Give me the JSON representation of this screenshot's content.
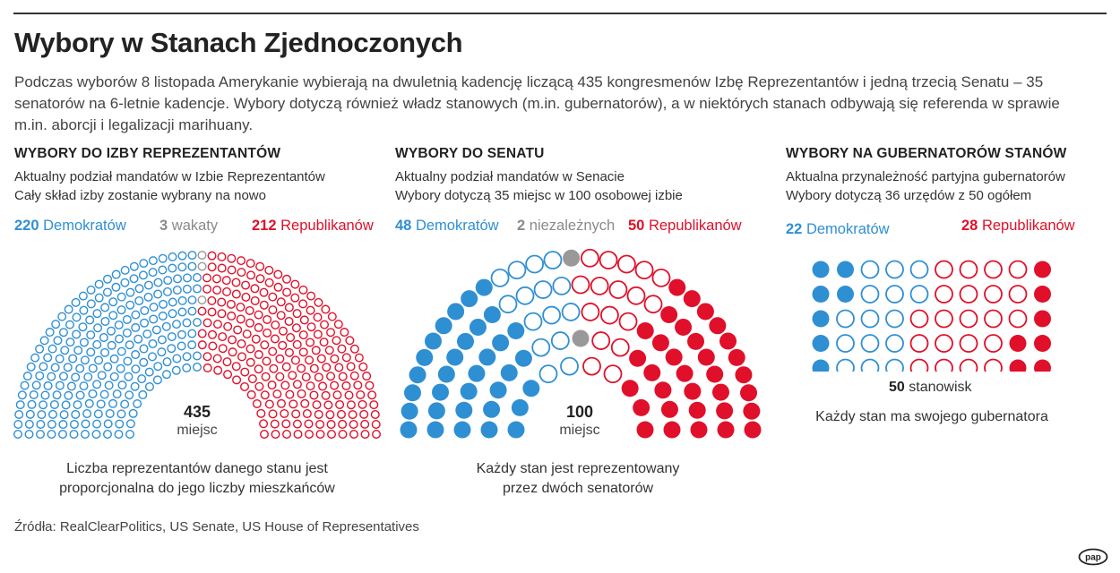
{
  "title": "Wybory w Stanach Zjednoczonych",
  "intro": "Podczas wyborów 8 listopada Amerykanie wybierają na dwuletnią kadencję liczącą 435 kongresmenów Izbę Reprezentantów i jedną trzecią Senatu – 35 senatorów na 6-letnie kadencje. Wybory dotyczą również władz stanowych (m.in. gubernatorów), a w niektórych stanach odbywają się referenda w sprawie m.in. aborcji i legalizacji marihuany.",
  "colors": {
    "democrats": "#2f8fd3",
    "republicans": "#e0102a",
    "other": "#999999"
  },
  "house": {
    "heading": "WYBORY DO IZBY REPREZENTANTÓW",
    "sub1": "Aktualny podział mandatów w Izbie Reprezentantów",
    "sub2": "Cały skład izby zostanie wybrany na nowo",
    "dem_count": "220",
    "dem_label": "Demokratów",
    "vac_count": "3",
    "vac_label": "wakaty",
    "rep_count": "212",
    "rep_label": "Republikanów",
    "total": "435",
    "total_label": "miejsc",
    "caption1": "Liczba reprezentantów danego stanu jest",
    "caption2": "proporcjonalna do jego liczby mieszkańców"
  },
  "senate": {
    "heading": "WYBORY DO SENATU",
    "sub1": "Aktualny podział mandatów w Senacie",
    "sub2": "Wybory dotyczą 35 miejsc w 100 osobowej izbie",
    "dem_count": "48",
    "dem_label": "Demokratów",
    "ind_count": "2",
    "ind_label": "niezależnych",
    "rep_count": "50",
    "rep_label": "Republikanów",
    "total": "100",
    "total_label": "miejsc",
    "caption1": "Każdy stan jest reprezentowany",
    "caption2": "przez dwóch senatorów"
  },
  "governors": {
    "heading": "WYBORY NA GUBERNATORÓW STANÓW",
    "sub1": "Aktualna przynależność partyjna gubernatorów",
    "sub2": "Wybory dotyczą 36 urzędów z 50 ogółem",
    "dem_count": "22",
    "dem_label": "Demokratów",
    "rep_count": "28",
    "rep_label": "Republikanów",
    "total": "50",
    "total_label": "stanowisk",
    "caption": "Każdy stan ma swojego gubernatora"
  },
  "chart_data": [
    {
      "type": "parliament",
      "categories": [
        "Demokratów",
        "wakaty",
        "Republikanów"
      ],
      "values": [
        220,
        3,
        212
      ],
      "total": 435
    },
    {
      "type": "parliament",
      "categories": [
        "Demokratów",
        "niezależnych",
        "Republikanów"
      ],
      "values": [
        48,
        2,
        50
      ],
      "total": 100
    },
    {
      "type": "waffle",
      "categories": [
        "Demokratów",
        "Republikanów"
      ],
      "values": [
        22,
        28
      ],
      "total": 50
    }
  ],
  "source": "Źródła: RealClearPolitics, US Senate, US House of Representatives",
  "logo_text": "pap"
}
